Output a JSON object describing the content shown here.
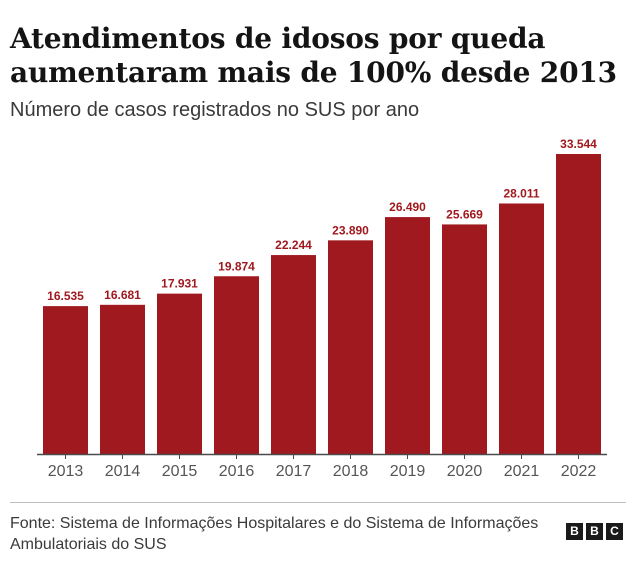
{
  "header": {
    "title": "Atendimentos de idosos por queda aumentaram mais de 100% desde 2013",
    "subtitle": "Número de casos registrados no SUS por ano"
  },
  "footer": {
    "source": "Fonte: Sistema de Informações Hospitalares e do Sistema de Informações Ambulatoriais do SUS",
    "logo_letters": [
      "B",
      "B",
      "C"
    ]
  },
  "colors": {
    "bar": "#a0191e",
    "label": "#a0191e",
    "axis": "#4a4a4a",
    "tick_text": "#555555"
  },
  "chart_data": {
    "type": "bar",
    "categories": [
      "2013",
      "2014",
      "2015",
      "2016",
      "2017",
      "2018",
      "2019",
      "2020",
      "2021",
      "2022"
    ],
    "values": [
      16535,
      16681,
      17931,
      19874,
      22244,
      23890,
      26490,
      25669,
      28011,
      33544
    ],
    "data_labels": [
      "16.535",
      "16.681",
      "17.931",
      "19.874",
      "22.244",
      "23.890",
      "26.490",
      "25.669",
      "28.011",
      "33.544"
    ],
    "ylim": [
      0,
      33544
    ],
    "grid": false,
    "legend": "none"
  }
}
